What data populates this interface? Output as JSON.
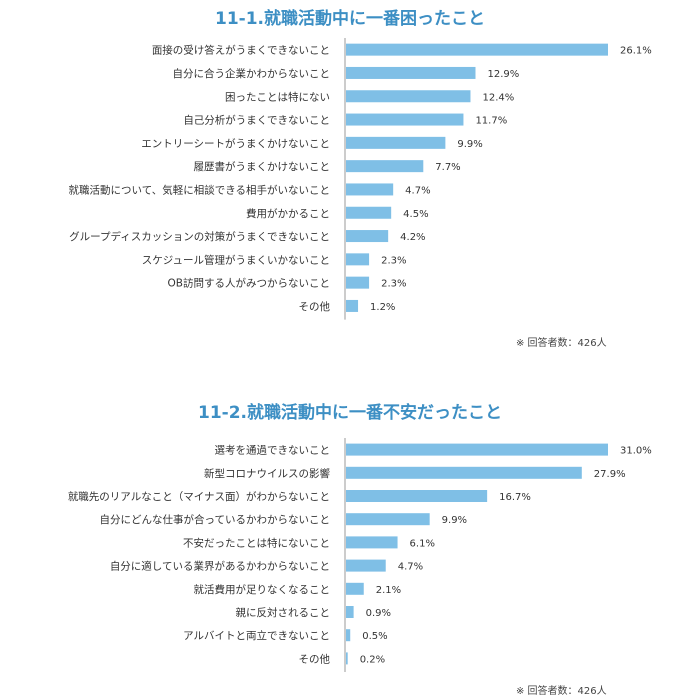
{
  "chart_data": [
    {
      "type": "bar",
      "orientation": "horizontal",
      "title": "11-1.就職活動中に一番困ったこと",
      "categories": [
        "面接の受け答えがうまくできないこと",
        "自分に合う企業かわからないこと",
        "困ったことは特にない",
        "自己分析がうまくできないこと",
        "エントリーシートがうまくかけないこと",
        "履歴書がうまくかけないこと",
        "就職活動について、気軽に相談できる相手がいないこと",
        "費用がかかること",
        "グループディスカッションの対策がうまくできないこと",
        "スケジュール管理がうまくいかないこと",
        "OB訪問する人がみつからないこと",
        "その他"
      ],
      "values": [
        26.1,
        12.9,
        12.4,
        11.7,
        9.9,
        7.7,
        4.7,
        4.5,
        4.2,
        2.3,
        2.3,
        1.2
      ],
      "value_labels": [
        "26.1%",
        "12.9%",
        "12.4%",
        "11.7%",
        "9.9%",
        "7.7%",
        "4.7%",
        "4.5%",
        "4.2%",
        "2.3%",
        "2.3%",
        "1.2%"
      ],
      "footnote": "※ 回答者数：426人",
      "bar_color": "#7fbfe6"
    },
    {
      "type": "bar",
      "orientation": "horizontal",
      "title": "11-2.就職活動中に一番不安だったこと",
      "categories": [
        "選考を通過できないこと",
        "新型コロナウイルスの影響",
        "就職先のリアルなこと（マイナス面）がわからないこと",
        "自分にどんな仕事が合っているかわからないこと",
        "不安だったことは特にないこと",
        "自分に適している業界があるかわからないこと",
        "就活費用が足りなくなること",
        "親に反対されること",
        "アルバイトと両立できないこと",
        "その他"
      ],
      "values": [
        31.0,
        27.9,
        16.7,
        9.9,
        6.1,
        4.7,
        2.1,
        0.9,
        0.5,
        0.2
      ],
      "value_labels": [
        "31.0%",
        "27.9%",
        "16.7%",
        "9.9%",
        "6.1%",
        "4.7%",
        "2.1%",
        "0.9%",
        "0.5%",
        "0.2%"
      ],
      "footnote": "※ 回答者数：426人",
      "bar_color": "#7fbfe6"
    }
  ]
}
